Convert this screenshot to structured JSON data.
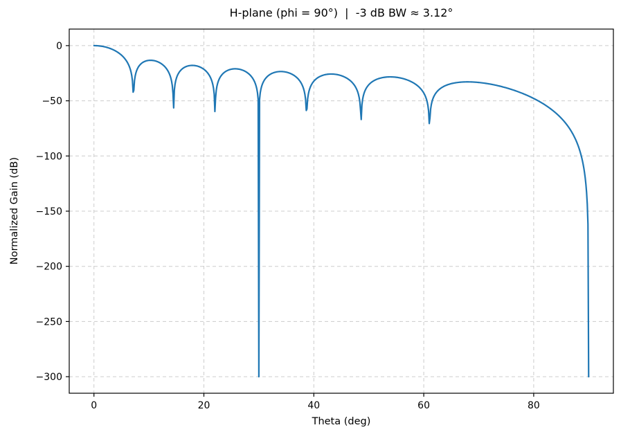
{
  "chart_data": {
    "type": "line",
    "title": "H-plane (phi = 90°)  |  -3 dB BW ≈ 3.12°",
    "xlabel": "Theta (deg)",
    "ylabel": "Normalized Gain (dB)",
    "xlim": [
      -4.5,
      94.5
    ],
    "ylim": [
      -315,
      15
    ],
    "xticks": [
      {
        "value": 0,
        "label": "0"
      },
      {
        "value": 20,
        "label": "20"
      },
      {
        "value": 40,
        "label": "40"
      },
      {
        "value": 60,
        "label": "60"
      },
      {
        "value": 80,
        "label": "80"
      }
    ],
    "yticks": [
      {
        "value": 0,
        "label": "0"
      },
      {
        "value": -50,
        "label": "−50"
      },
      {
        "value": -100,
        "label": "−100"
      },
      {
        "value": -150,
        "label": "−150"
      },
      {
        "value": -200,
        "label": "−200"
      },
      {
        "value": -250,
        "label": "−250"
      },
      {
        "value": -300,
        "label": "−300"
      }
    ],
    "grid": {
      "show": true,
      "color": "#cccccc",
      "dash": [
        5,
        4
      ],
      "width": 1
    },
    "line": {
      "color": "#1f77b4",
      "width": 2.2
    },
    "axis": {
      "spine_color": "#000000",
      "tick_color": "#000000",
      "tick_length": 5,
      "spine_width": 1.2
    },
    "background": "#ffffff",
    "floor_db": -300,
    "series_model": {
      "kind": "uniform-linear-array-factor",
      "elements": 16,
      "spacing_over_lambda": 0.5,
      "element_factor": "cos(theta)",
      "scale_db": "20log10",
      "theta_start_deg": 0,
      "theta_end_deg": 90,
      "num_points": 721
    },
    "features": {
      "main_beam_peak_db": 0,
      "minus3db_beamwidth_deg": 3.12,
      "nulls_theta_deg": [
        7.2,
        14.5,
        22.0,
        30.0,
        38.7,
        48.6,
        61.0,
        90.0
      ],
      "null_floor_db_rendered": [
        -41.5,
        -56.3,
        -59.8,
        -300,
        -58.8,
        -66.9,
        -70.6,
        -300
      ],
      "sidelobe_peak_theta_deg": [
        10.0,
        17.7,
        25.7,
        34.2,
        43.3,
        54.3,
        68.5
      ],
      "sidelobe_peak_db": [
        -13.3,
        -18.0,
        -21.0,
        -23.5,
        -25.8,
        -28.4,
        -32.8
      ]
    }
  }
}
